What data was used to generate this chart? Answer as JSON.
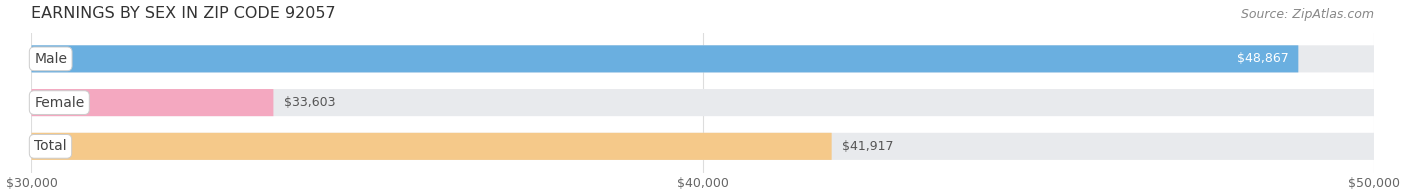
{
  "title": "EARNINGS BY SEX IN ZIP CODE 92057",
  "source": "Source: ZipAtlas.com",
  "categories": [
    "Male",
    "Female",
    "Total"
  ],
  "values": [
    48867,
    33603,
    41917
  ],
  "bar_colors": [
    "#6aafe0",
    "#f4a8c0",
    "#f5c98a"
  ],
  "bar_bg_color": "#e8eaed",
  "xmin": 30000,
  "xmax": 50000,
  "xticks": [
    30000,
    40000,
    50000
  ],
  "xtick_labels": [
    "$30,000",
    "$40,000",
    "$50,000"
  ],
  "value_labels": [
    "$48,867",
    "$33,603",
    "$41,917"
  ],
  "value_inside": [
    true,
    false,
    false
  ],
  "title_fontsize": 11.5,
  "source_fontsize": 9,
  "tick_fontsize": 9,
  "bar_label_fontsize": 9,
  "cat_label_fontsize": 10,
  "figsize": [
    14.06,
    1.96
  ],
  "dpi": 100
}
